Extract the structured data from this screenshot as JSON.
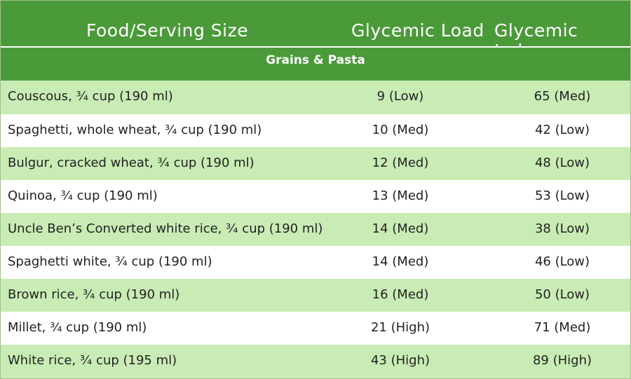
{
  "header": {
    "food": "Food/Serving Size",
    "load": "Glycemic Load",
    "index": "Glycemic Index"
  },
  "section": "Grains & Pasta",
  "rows": [
    {
      "food": "Couscous, ¾ cup (190 ml)",
      "load": "9 (Low)",
      "index": "65 (Med)"
    },
    {
      "food": "Spaghetti, whole wheat, ¾ cup (190 ml)",
      "load": "10 (Med)",
      "index": "42 (Low)"
    },
    {
      "food": "Bulgur, cracked wheat, ¾ cup (190 ml)",
      "load": "12 (Med)",
      "index": "48 (Low)"
    },
    {
      "food": "Quinoa, ¾ cup (190 ml)",
      "load": "13 (Med)",
      "index": "53 (Low)"
    },
    {
      "food": "Uncle Ben’s Converted white rice, ¾ cup (190 ml)",
      "load": "14 (Med)",
      "index": "38 (Low)"
    },
    {
      "food": "Spaghetti white, ¾ cup (190 ml)",
      "load": "14 (Med)",
      "index": "46 (Low)"
    },
    {
      "food": "Brown rice, ¾ cup (190 ml)",
      "load": "16 (Med)",
      "index": "50 (Low)"
    },
    {
      "food": "Millet, ¾ cup (190 ml)",
      "load": "21 (High)",
      "index": "71 (Med)"
    },
    {
      "food": "White rice, ¾ cup (195 ml)",
      "load": "43 (High)",
      "index": "89 (High)"
    }
  ],
  "colors": {
    "header_bg": "#4b9a3a",
    "row_light": "#c9ecb5",
    "row_white": "#ffffff"
  }
}
